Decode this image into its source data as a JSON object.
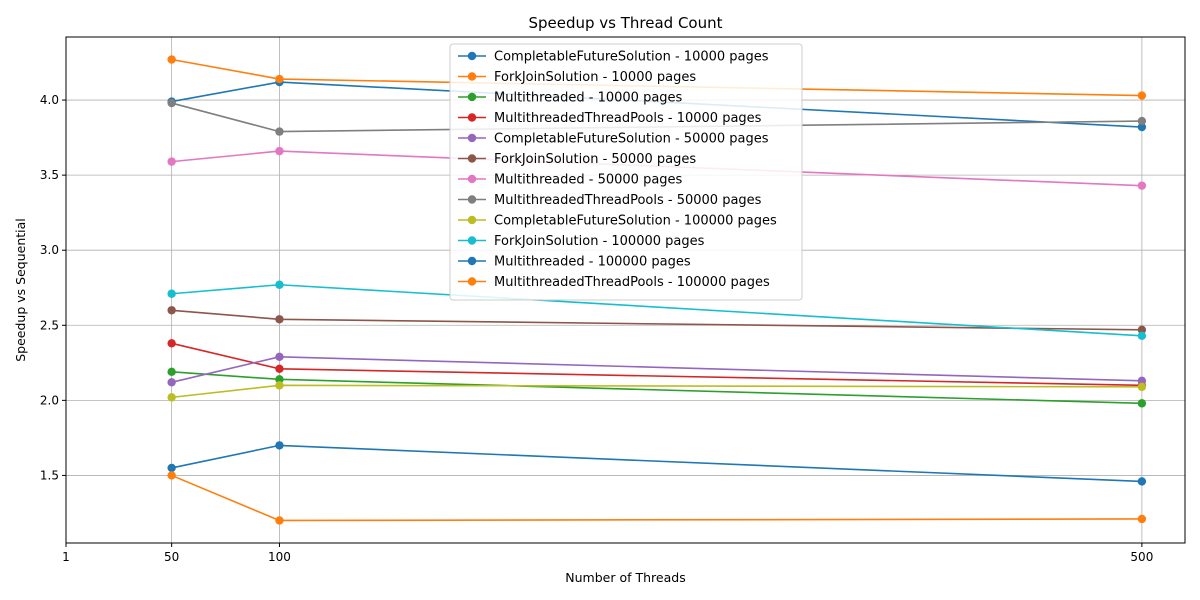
{
  "chart_data": {
    "type": "line",
    "title": "Speedup vs Thread Count",
    "xlabel": "Number of Threads",
    "ylabel": "Speedup vs Sequential",
    "x": [
      50,
      100,
      500
    ],
    "xticks": [
      1,
      50,
      100,
      500
    ],
    "xtick_labels": [
      "1",
      "50",
      "100",
      "500"
    ],
    "xlim": [
      1,
      520
    ],
    "yticks": [
      1.5,
      2.0,
      2.5,
      3.0,
      3.5,
      4.0
    ],
    "ytick_labels": [
      "1.5",
      "2.0",
      "2.5",
      "3.0",
      "3.5",
      "4.0"
    ],
    "ylim": [
      1.05,
      4.42
    ],
    "grid": true,
    "legend_position": "upper-center",
    "series": [
      {
        "name": "CompletableFutureSolution - 10000 pages",
        "color": "#1f77b4",
        "values": [
          3.99,
          4.12,
          3.82
        ]
      },
      {
        "name": "ForkJoinSolution - 10000 pages",
        "color": "#ff7f0e",
        "values": [
          4.27,
          4.14,
          4.03
        ]
      },
      {
        "name": "Multithreaded - 10000 pages",
        "color": "#2ca02c",
        "values": [
          2.19,
          2.14,
          1.98
        ]
      },
      {
        "name": "MultithreadedThreadPools - 10000 pages",
        "color": "#d62728",
        "values": [
          2.38,
          2.21,
          2.1
        ]
      },
      {
        "name": "CompletableFutureSolution - 50000 pages",
        "color": "#9467bd",
        "values": [
          2.12,
          2.29,
          2.13
        ]
      },
      {
        "name": "ForkJoinSolution - 50000 pages",
        "color": "#8c564b",
        "values": [
          2.6,
          2.54,
          2.47
        ]
      },
      {
        "name": "Multithreaded - 50000 pages",
        "color": "#e377c2",
        "values": [
          3.59,
          3.66,
          3.43
        ]
      },
      {
        "name": "MultithreadedThreadPools - 50000 pages",
        "color": "#7f7f7f",
        "values": [
          3.98,
          3.79,
          3.86
        ]
      },
      {
        "name": "CompletableFutureSolution - 100000 pages",
        "color": "#bcbd22",
        "values": [
          2.02,
          2.1,
          2.09
        ]
      },
      {
        "name": "ForkJoinSolution - 100000 pages",
        "color": "#17becf",
        "values": [
          2.71,
          2.77,
          2.43
        ]
      },
      {
        "name": "Multithreaded - 100000 pages",
        "color": "#1f77b4",
        "values": [
          1.55,
          1.7,
          1.46
        ]
      },
      {
        "name": "MultithreadedThreadPools - 100000 pages",
        "color": "#ff7f0e",
        "values": [
          1.5,
          1.2,
          1.21
        ]
      }
    ]
  }
}
